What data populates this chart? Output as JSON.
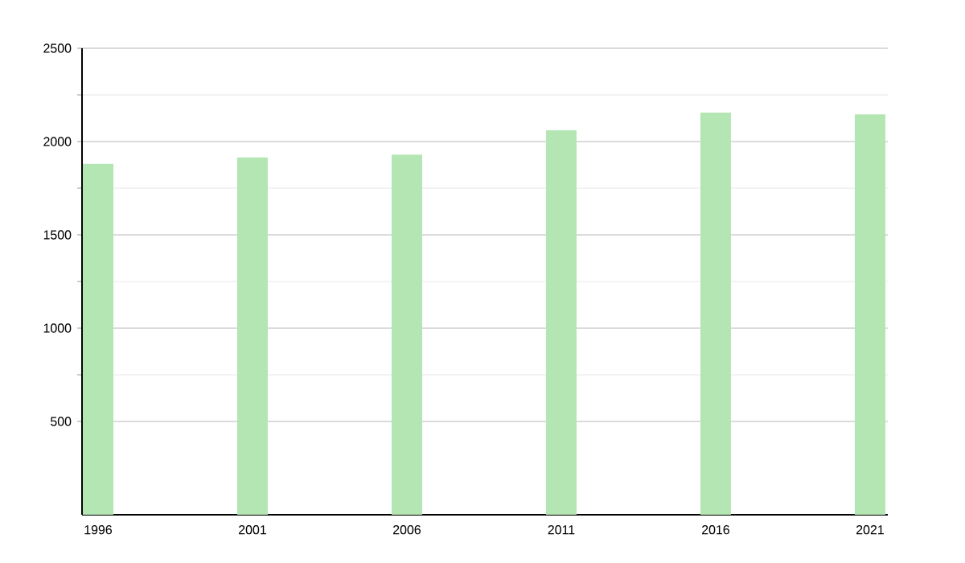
{
  "chart_data": {
    "type": "bar",
    "categories": [
      "1996",
      "2001",
      "2006",
      "2011",
      "2016",
      "2021"
    ],
    "values": [
      1880,
      1915,
      1930,
      2060,
      2155,
      2145
    ],
    "color": "#b3e6b3",
    "ylim": [
      0,
      2500
    ],
    "yticks": [
      500,
      1000,
      1500,
      2000,
      2500
    ],
    "grid": true
  }
}
